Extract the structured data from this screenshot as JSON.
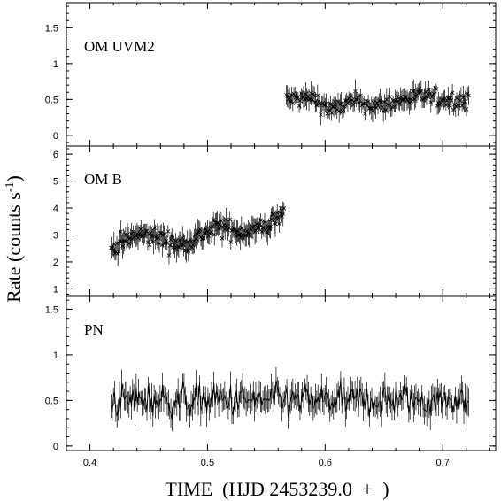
{
  "chart_data": {
    "type": "scatter",
    "xlabel": "TIME  (HJD 2453239.0  +  )",
    "ylabel": "Rate (counts s",
    "ylabel_exponent": "-1",
    "ylabel_close": ")",
    "xlim": [
      0.38,
      0.745
    ],
    "xticks": [
      0.4,
      0.5,
      0.6,
      0.7
    ],
    "xtick_labels": [
      "0.4",
      "0.5",
      "0.6",
      "0.7"
    ],
    "grid": false,
    "panels": [
      {
        "name": "OM UVM2",
        "ylim": [
          -0.15,
          1.85
        ],
        "yticks": [
          0,
          0.5,
          1,
          1.5
        ],
        "ytick_labels": [
          "0",
          "0.5",
          "1",
          "1.5"
        ],
        "marker": "cross",
        "x_range": [
          0.567,
          0.722
        ],
        "n_points": 170,
        "segments": [
          {
            "x": 0.567,
            "y": 0.5
          },
          {
            "x": 0.59,
            "y": 0.52
          },
          {
            "x": 0.605,
            "y": 0.35
          },
          {
            "x": 0.625,
            "y": 0.48
          },
          {
            "x": 0.645,
            "y": 0.4
          },
          {
            "x": 0.665,
            "y": 0.5
          },
          {
            "x": 0.685,
            "y": 0.55
          },
          {
            "x": 0.7,
            "y": 0.5
          },
          {
            "x": 0.722,
            "y": 0.48
          }
        ],
        "scatter": 0.12,
        "err": 0.12
      },
      {
        "name": "OM B",
        "ylim": [
          0.75,
          6.3
        ],
        "yticks": [
          1,
          2,
          3,
          4,
          5,
          6
        ],
        "ytick_labels": [
          "1",
          "2",
          "3",
          "4",
          "5",
          "6"
        ],
        "marker": "cross",
        "x_range": [
          0.418,
          0.565
        ],
        "n_points": 180,
        "segments": [
          {
            "x": 0.418,
            "y": 2.5
          },
          {
            "x": 0.44,
            "y": 3.0
          },
          {
            "x": 0.46,
            "y": 2.9
          },
          {
            "x": 0.475,
            "y": 2.6
          },
          {
            "x": 0.49,
            "y": 2.9
          },
          {
            "x": 0.51,
            "y": 3.3
          },
          {
            "x": 0.53,
            "y": 3.1
          },
          {
            "x": 0.55,
            "y": 3.3
          },
          {
            "x": 0.565,
            "y": 3.8
          }
        ],
        "scatter": 0.35,
        "err": 0.35
      },
      {
        "name": "PN",
        "ylim": [
          -0.05,
          1.65
        ],
        "yticks": [
          0,
          0.5,
          1,
          1.5
        ],
        "ytick_labels": [
          "0",
          "0.5",
          "1",
          "1.5"
        ],
        "marker": "line",
        "x_range": [
          0.418,
          0.722
        ],
        "n_points": 300,
        "segments": [
          {
            "x": 0.418,
            "y": 0.5
          },
          {
            "x": 0.722,
            "y": 0.5
          }
        ],
        "scatter": 0.18,
        "err": 0.12
      }
    ]
  }
}
